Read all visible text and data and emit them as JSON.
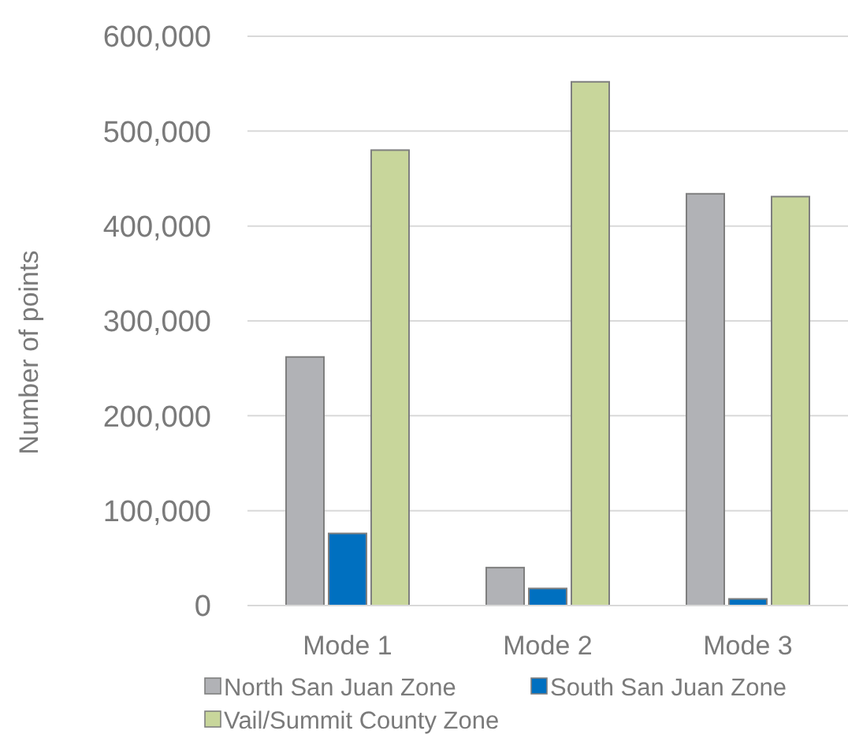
{
  "chart_data": {
    "type": "bar",
    "ylabel": "Number of points",
    "categories": [
      "Mode 1",
      "Mode 2",
      "Mode 3"
    ],
    "series": [
      {
        "name": "North San Juan Zone",
        "color": "#b1b2b6",
        "values": [
          262000,
          40000,
          434000
        ]
      },
      {
        "name": "South San Juan Zone",
        "color": "#0070c0",
        "values": [
          76000,
          18000,
          7000
        ]
      },
      {
        "name": "Vail/Summit County Zone",
        "color": "#c8d69b",
        "values": [
          480000,
          552000,
          431000
        ]
      }
    ],
    "ylim": [
      0,
      600000
    ],
    "yticks": [
      {
        "value": 0,
        "label": "0"
      },
      {
        "value": 100000,
        "label": "100,000"
      },
      {
        "value": 200000,
        "label": "200,000"
      },
      {
        "value": 300000,
        "label": "300,000"
      },
      {
        "value": 400000,
        "label": "400,000"
      },
      {
        "value": 500000,
        "label": "500,000"
      },
      {
        "value": 600000,
        "label": "600,000"
      }
    ],
    "grid": "y",
    "legend": "bottom"
  }
}
